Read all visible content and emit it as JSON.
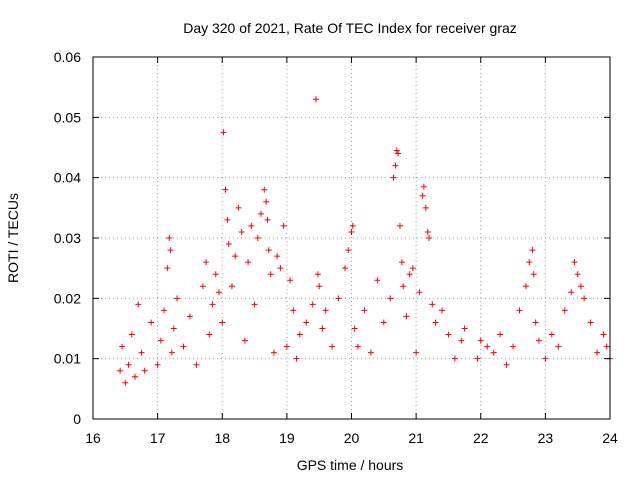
{
  "chart_data": {
    "type": "scatter",
    "title": "Day 320 of 2021, Rate Of TEC Index for receiver graz",
    "xlabel": "GPS time / hours",
    "ylabel": "ROTI / TECUs",
    "xlim": [
      16,
      24
    ],
    "ylim": [
      0,
      0.06
    ],
    "xticks": [
      "16",
      "17",
      "18",
      "19",
      "20",
      "21",
      "22",
      "23",
      "24"
    ],
    "yticks": [
      "0",
      "0.01",
      "0.02",
      "0.03",
      "0.04",
      "0.05",
      "0.06"
    ],
    "grid": true,
    "marker": "+",
    "color": "#ff0000",
    "series": [
      {
        "x": [
          16.42,
          16.45,
          16.5,
          16.55,
          16.6,
          16.65,
          16.7,
          16.75,
          16.8,
          16.9,
          17.0,
          17.05,
          17.1,
          17.15,
          17.18,
          17.2,
          17.22,
          17.25,
          17.3,
          17.4,
          17.5,
          17.6,
          17.7,
          17.75,
          17.8,
          17.85,
          17.9,
          17.95,
          18.0,
          18.02,
          18.05,
          18.08,
          18.1,
          18.15,
          18.2,
          18.25,
          18.3,
          18.35,
          18.4,
          18.45,
          18.5,
          18.55,
          18.6,
          18.65,
          18.68,
          18.7,
          18.72,
          18.75,
          18.8,
          18.85,
          18.9,
          18.95,
          19.0,
          19.05,
          19.1,
          19.15,
          19.2,
          19.3,
          19.4,
          19.45,
          19.48,
          19.5,
          19.55,
          19.6,
          19.7,
          19.8,
          19.9,
          19.95,
          20.0,
          20.02,
          20.05,
          20.1,
          20.2,
          20.3,
          20.4,
          20.5,
          20.6,
          20.65,
          20.68,
          20.7,
          20.72,
          20.75,
          20.78,
          20.8,
          20.85,
          20.9,
          20.95,
          21.0,
          21.05,
          21.1,
          21.12,
          21.15,
          21.18,
          21.2,
          21.25,
          21.3,
          21.4,
          21.5,
          21.6,
          21.7,
          21.75,
          21.95,
          22.0,
          22.1,
          22.2,
          22.3,
          22.4,
          22.5,
          22.6,
          22.7,
          22.75,
          22.8,
          22.82,
          22.85,
          22.9,
          23.0,
          23.1,
          23.2,
          23.3,
          23.4,
          23.45,
          23.5,
          23.55,
          23.6,
          23.7,
          23.8,
          23.9,
          23.95,
          24.0
        ],
        "y": [
          0.008,
          0.012,
          0.006,
          0.009,
          0.014,
          0.007,
          0.019,
          0.011,
          0.008,
          0.016,
          0.009,
          0.013,
          0.018,
          0.025,
          0.03,
          0.028,
          0.011,
          0.015,
          0.02,
          0.012,
          0.017,
          0.009,
          0.022,
          0.026,
          0.014,
          0.019,
          0.024,
          0.021,
          0.016,
          0.0475,
          0.038,
          0.033,
          0.029,
          0.022,
          0.027,
          0.035,
          0.031,
          0.013,
          0.026,
          0.032,
          0.019,
          0.03,
          0.034,
          0.038,
          0.036,
          0.033,
          0.028,
          0.024,
          0.011,
          0.027,
          0.025,
          0.032,
          0.012,
          0.023,
          0.018,
          0.01,
          0.014,
          0.016,
          0.019,
          0.053,
          0.024,
          0.022,
          0.015,
          0.018,
          0.012,
          0.02,
          0.025,
          0.028,
          0.031,
          0.032,
          0.015,
          0.012,
          0.018,
          0.011,
          0.023,
          0.016,
          0.02,
          0.04,
          0.042,
          0.0445,
          0.044,
          0.032,
          0.026,
          0.022,
          0.017,
          0.024,
          0.025,
          0.011,
          0.021,
          0.037,
          0.0385,
          0.035,
          0.031,
          0.03,
          0.019,
          0.016,
          0.018,
          0.014,
          0.01,
          0.013,
          0.015,
          0.01,
          0.013,
          0.012,
          0.011,
          0.014,
          0.009,
          0.012,
          0.018,
          0.022,
          0.026,
          0.028,
          0.024,
          0.016,
          0.013,
          0.01,
          0.014,
          0.012,
          0.018,
          0.021,
          0.026,
          0.024,
          0.022,
          0.02,
          0.016,
          0.011,
          0.014,
          0.012,
          0.01
        ]
      }
    ]
  }
}
